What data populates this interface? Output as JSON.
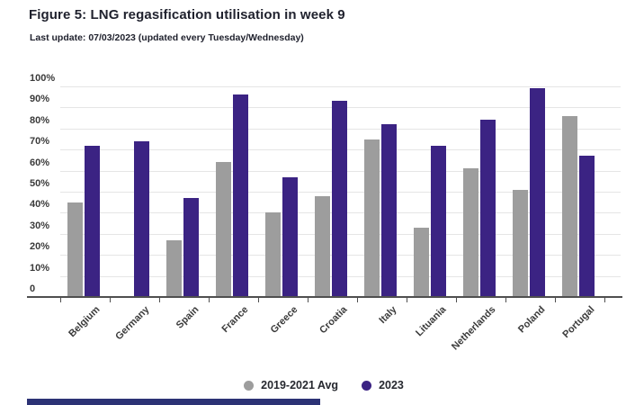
{
  "header": {
    "title": "Figure 5: LNG regasification utilisation in week 9",
    "subtitle": "Last update: 07/03/2023 (updated every Tuesday/Wednesday)"
  },
  "chart_data": {
    "type": "bar",
    "title": "Figure 5: LNG regasification utilisation in week 9",
    "categories": [
      "Belgium",
      "Germany",
      "Spain",
      "France",
      "Greece",
      "Croatia",
      "Italy",
      "Lituania",
      "Netherlands",
      "Poland",
      "Portugal"
    ],
    "series": [
      {
        "name": "2019-2021 Avg",
        "color": "#9d9d9d",
        "values": [
          45,
          null,
          27,
          64,
          40,
          48,
          75,
          33,
          61,
          51,
          86
        ]
      },
      {
        "name": "2023",
        "color": "#3b2383",
        "values": [
          72,
          74,
          47,
          96,
          57,
          93,
          82,
          72,
          84,
          99,
          67
        ]
      }
    ],
    "xlabel": "",
    "ylabel": "",
    "ylim": [
      0,
      100
    ],
    "ytick_labels": [
      "0",
      "10%",
      "20%",
      "30%",
      "40%",
      "50%",
      "60%",
      "70%",
      "80%",
      "90%",
      "100%"
    ],
    "grid": true,
    "legend_position": "bottom-center",
    "units": "percent"
  },
  "colors": {
    "accent_purple": "#3b2383",
    "accent_gray": "#9d9d9d",
    "axis_line": "#4f4f4f",
    "gridline": "#e5e5e5",
    "footer_bar": "#2c3275",
    "text_dark": "#20222e"
  }
}
